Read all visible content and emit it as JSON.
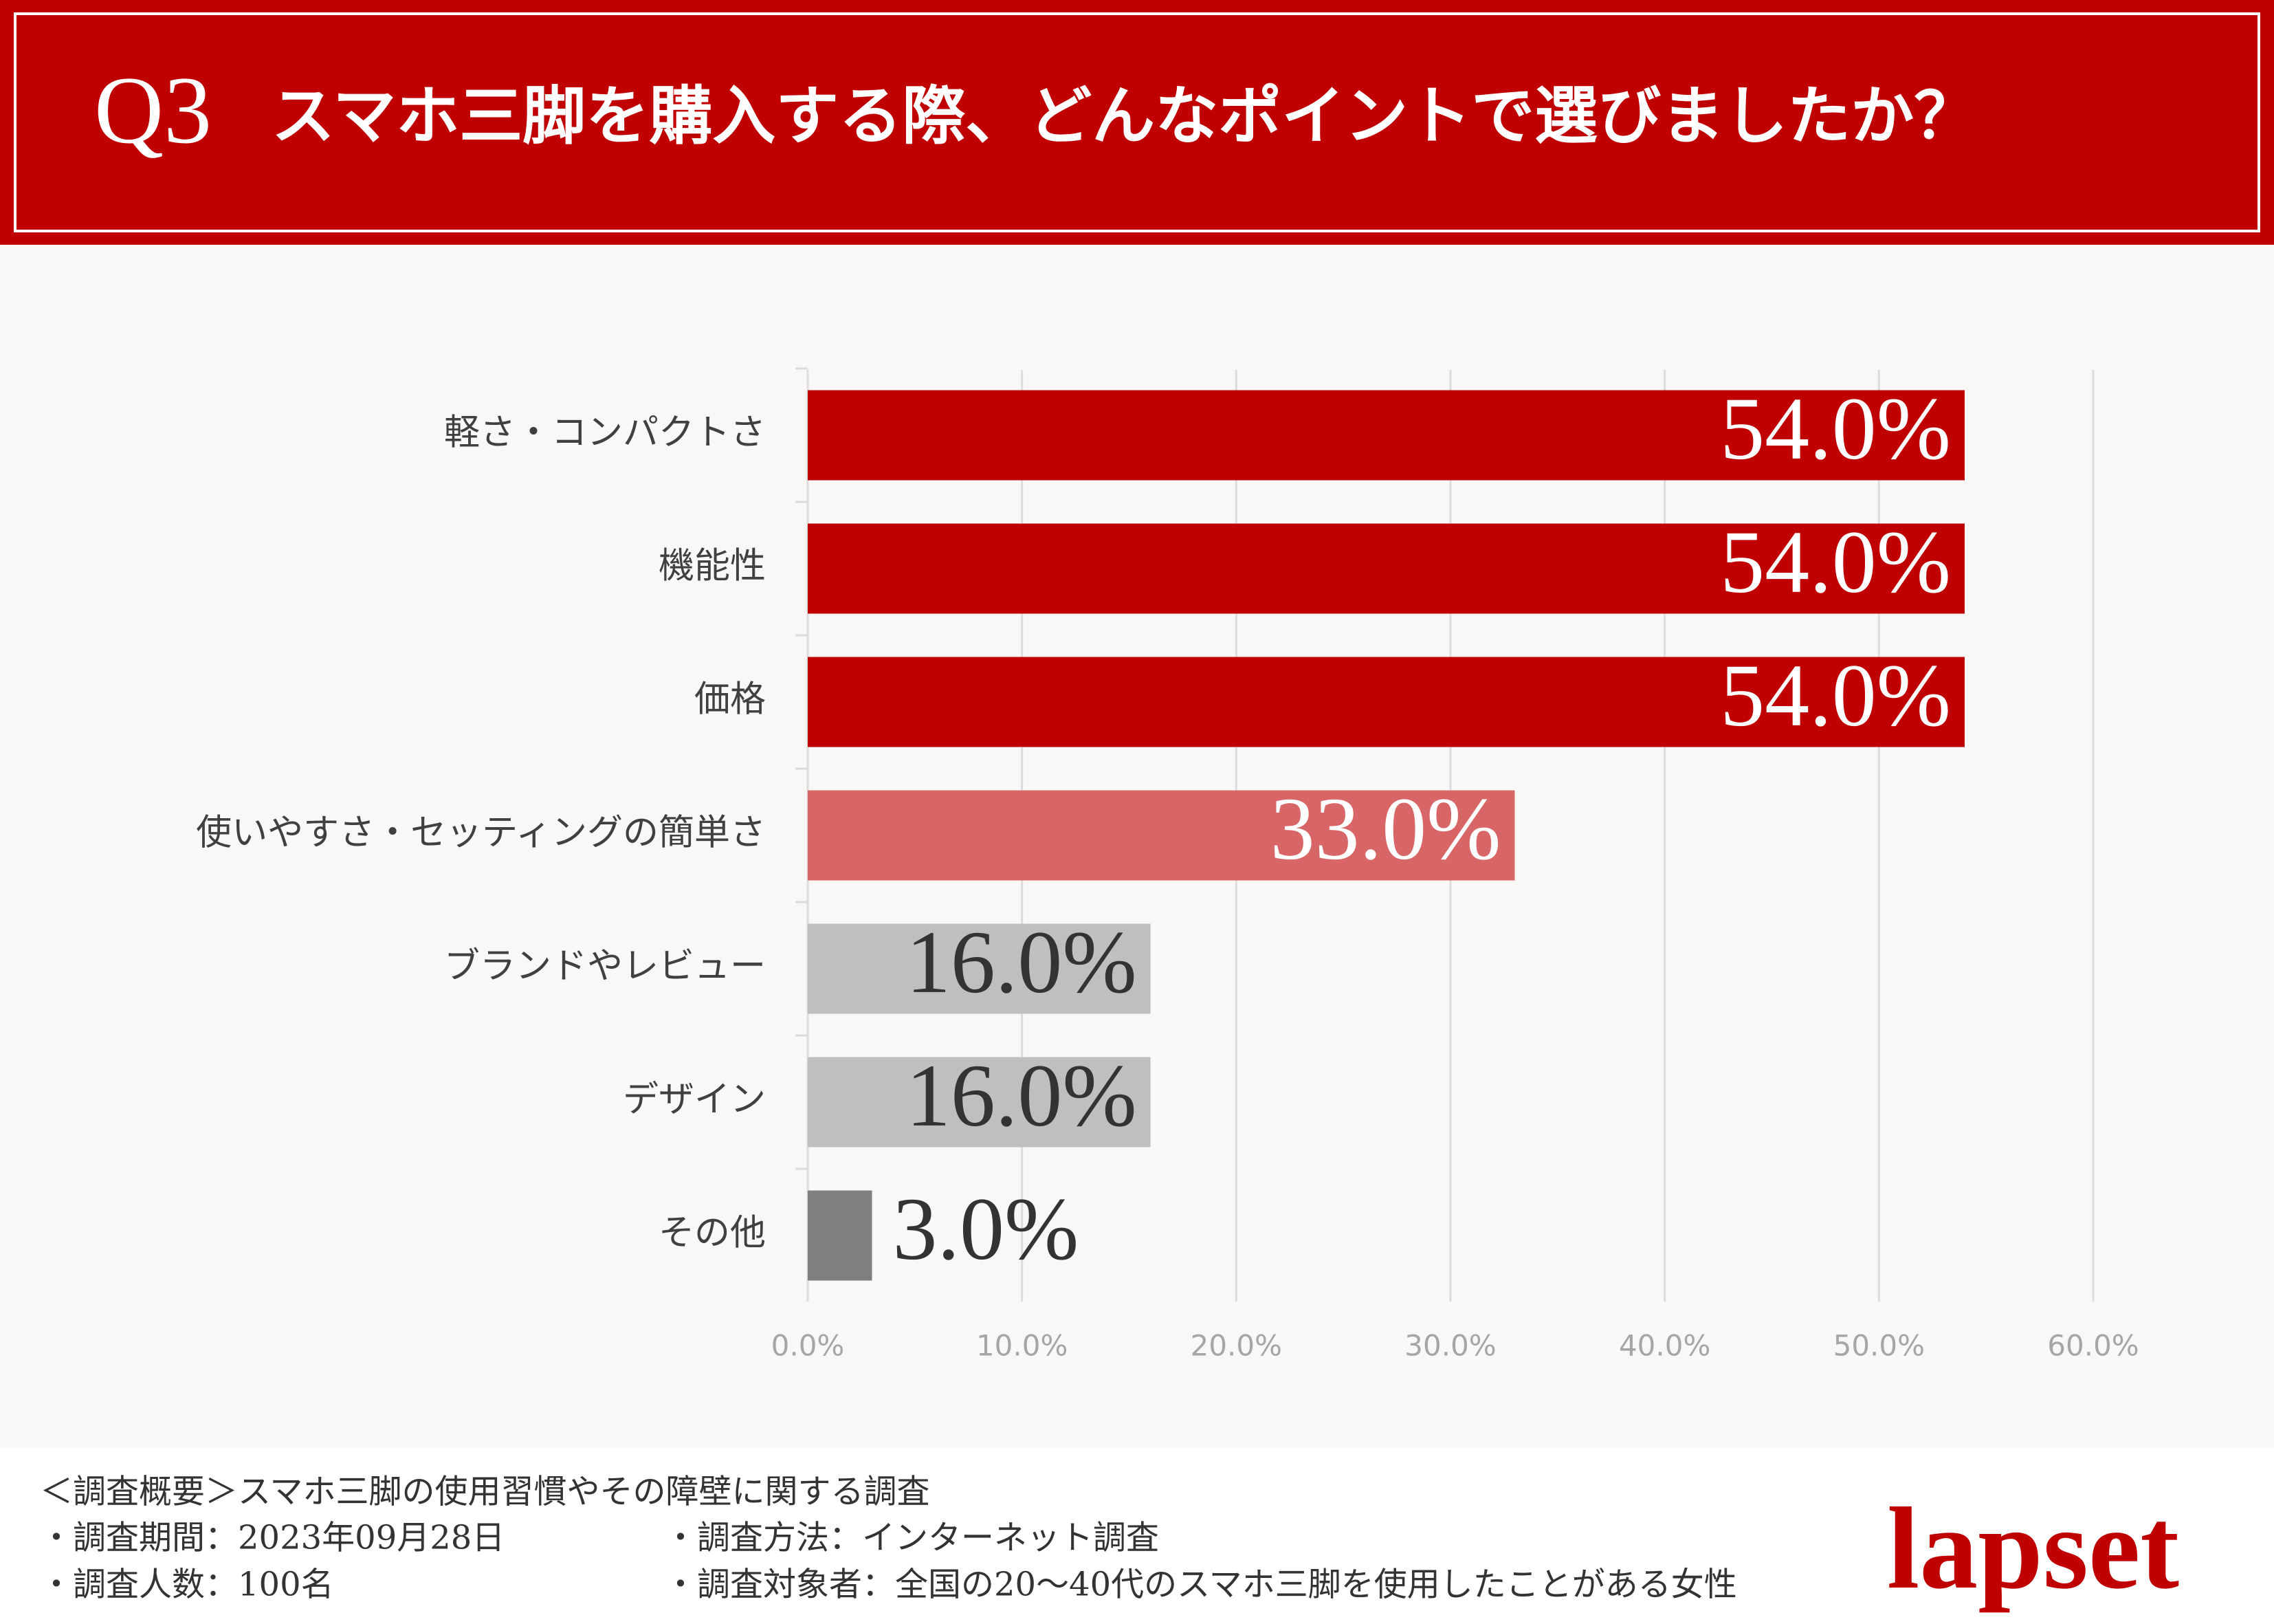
{
  "header": {
    "number": "Q3",
    "title": "スマホ三脚を購入する際、どんなポイントで選びましたか？"
  },
  "chart_data": {
    "type": "bar",
    "orientation": "horizontal",
    "categories": [
      "軽さ・コンパクトさ",
      "機能性",
      "価格",
      "使いやすさ・セッティングの簡単さ",
      "ブランドやレビュー",
      "デザイン",
      "その他"
    ],
    "values": [
      54.0,
      54.0,
      54.0,
      33.0,
      16.0,
      16.0,
      3.0
    ],
    "value_labels": [
      "54.0%",
      "54.0%",
      "54.0%",
      "33.0%",
      "16.0%",
      "16.0%",
      "3.0%"
    ],
    "colors": [
      "#c00000",
      "#c00000",
      "#c00000",
      "#d96666",
      "#bfbfbf",
      "#bfbfbf",
      "#7f7f7f"
    ],
    "label_colors": [
      "#ffffff",
      "#ffffff",
      "#ffffff",
      "#ffffff",
      "#333333",
      "#333333",
      "#333333"
    ],
    "xlim": [
      0,
      60
    ],
    "xticks": [
      {
        "value": 0,
        "label": "0.0%"
      },
      {
        "value": 10,
        "label": "10.0%"
      },
      {
        "value": 20,
        "label": "20.0%"
      },
      {
        "value": 30,
        "label": "30.0%"
      },
      {
        "value": 40,
        "label": "40.0%"
      },
      {
        "value": 50,
        "label": "50.0%"
      },
      {
        "value": 60,
        "label": "60.0%"
      }
    ],
    "grid": true
  },
  "footer": {
    "heading": "＜調査概要＞スマホ三脚の使用習慣やその障壁に関する調査",
    "items": [
      "・調査期間：2023年09月28日",
      "・調査方法：インターネット調査",
      "・調査人数：100名",
      "・調査対象者：全国の20〜40代のスマホ三脚を使用したことがある女性"
    ]
  },
  "logo": "lapset"
}
